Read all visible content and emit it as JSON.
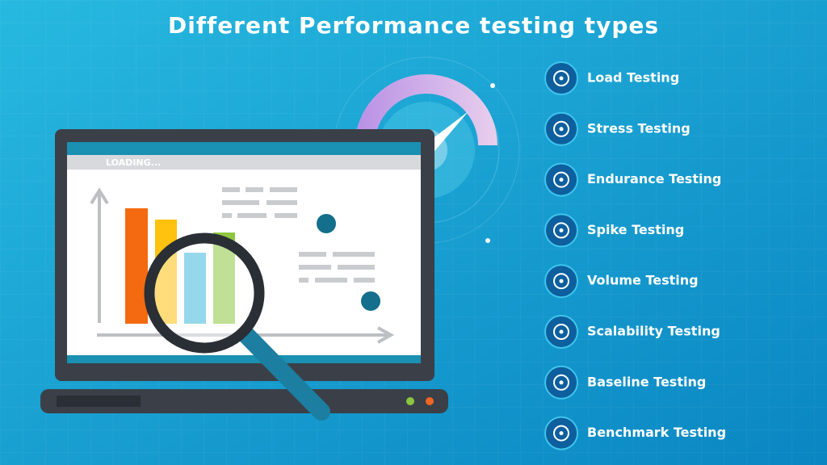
{
  "header": {
    "title": "Different Performance testing types"
  },
  "illustration": {
    "status": "LOADING..."
  },
  "items": [
    {
      "label": "Load Testing"
    },
    {
      "label": "Stress Testing"
    },
    {
      "label": "Endurance Testing"
    },
    {
      "label": "Spike Testing"
    },
    {
      "label": "Volume Testing"
    },
    {
      "label": "Scalability Testing"
    },
    {
      "label": "Baseline Testing"
    },
    {
      "label": "Benchmark Testing"
    }
  ]
}
